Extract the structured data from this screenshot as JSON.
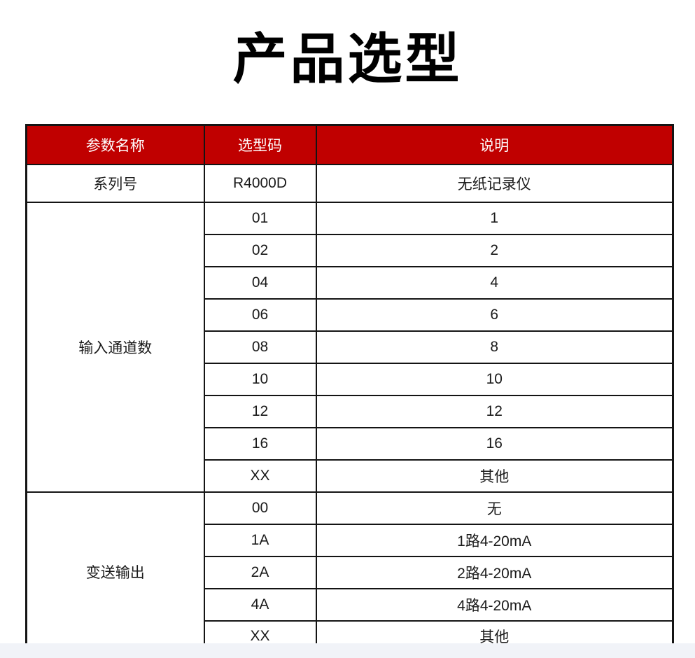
{
  "page": {
    "title": "产品选型"
  },
  "colors": {
    "header_bg": "#c00000",
    "header_text": "#ffffff",
    "border": "#141414",
    "body_text": "#1a1a1a",
    "bottom_strip": "#f1f3f8"
  },
  "table": {
    "columns": [
      "参数名称",
      "选型码",
      "说明"
    ],
    "sections": [
      {
        "name": "系列号",
        "rows": [
          {
            "code": "R4000D",
            "desc": "无纸记录仪"
          }
        ]
      },
      {
        "name": "输入通道数",
        "rows": [
          {
            "code": "01",
            "desc": "1"
          },
          {
            "code": "02",
            "desc": "2"
          },
          {
            "code": "04",
            "desc": "4"
          },
          {
            "code": "06",
            "desc": "6"
          },
          {
            "code": "08",
            "desc": "8"
          },
          {
            "code": "10",
            "desc": "10"
          },
          {
            "code": "12",
            "desc": "12"
          },
          {
            "code": "16",
            "desc": "16"
          },
          {
            "code": "XX",
            "desc": "其他"
          }
        ]
      },
      {
        "name": "变送输出",
        "rows": [
          {
            "code": "00",
            "desc": "无"
          },
          {
            "code": "1A",
            "desc": "1路4-20mA"
          },
          {
            "code": "2A",
            "desc": "2路4-20mA"
          },
          {
            "code": "4A",
            "desc": "4路4-20mA"
          },
          {
            "code": "XX",
            "desc": "其他"
          }
        ]
      }
    ]
  }
}
